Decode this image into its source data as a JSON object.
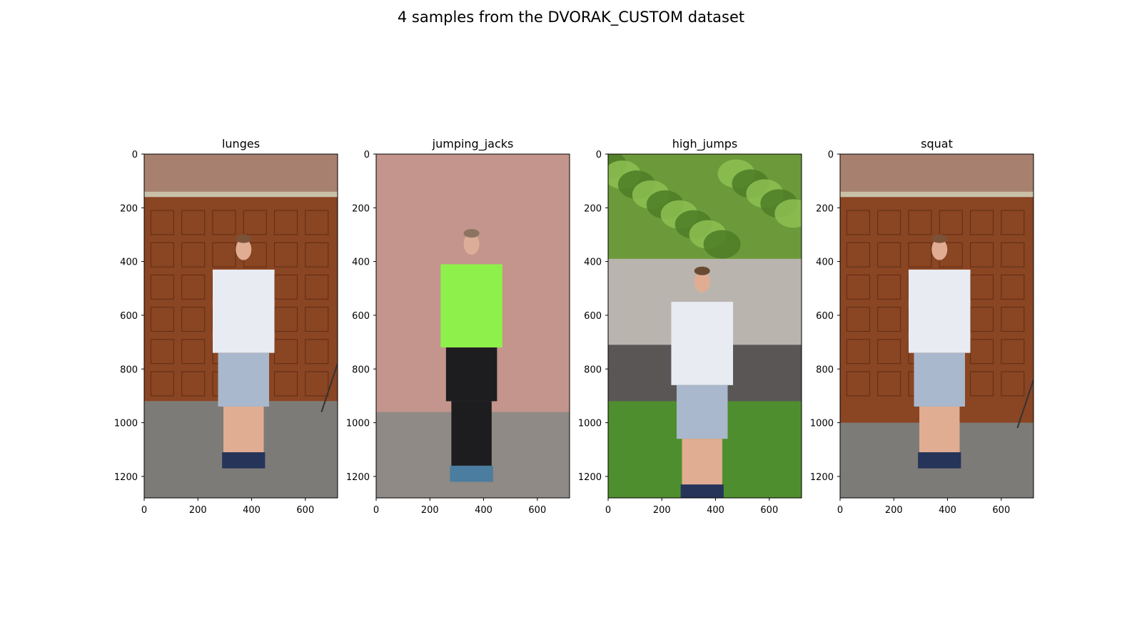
{
  "figure": {
    "title": "4 samples from the DVORAK_CUSTOM dataset"
  },
  "chart_data": [
    {
      "type": "image",
      "title": "lunges",
      "image_size": [
        720,
        1280
      ],
      "xlim": [
        0,
        720
      ],
      "ylim": [
        1280,
        0
      ],
      "xticks": [
        0,
        200,
        400,
        600
      ],
      "yticks": [
        0,
        200,
        400,
        600,
        800,
        1000,
        1200
      ],
      "scene": "man in white t-shirt and grey shorts standing with hands clasped in front of a wooden garage door, paved ground",
      "palette": {
        "door": "#8a4523",
        "ground": "#7d7b77",
        "top": "#a8806f",
        "shirt": "#e8ebf2",
        "pants": "#a9b8cc",
        "skin": "#e0ad93",
        "hair": "#7a5238",
        "shoes": "#26345a"
      }
    },
    {
      "type": "image",
      "title": "jumping_jacks",
      "image_size": [
        720,
        1280
      ],
      "xlim": [
        0,
        720
      ],
      "ylim": [
        1280,
        0
      ],
      "xticks": [
        0,
        200,
        400,
        600
      ],
      "yticks": [
        0,
        200,
        400,
        600,
        800,
        1000,
        1200
      ],
      "scene": "woman in green tank top and black leggings standing in front of a pink stucco wall, brick paving",
      "palette": {
        "wall": "#c3958c",
        "ground": "#8f8a85",
        "shirt": "#8ef04a",
        "pants": "#1d1d1f",
        "skin": "#dcae98",
        "hair": "#8c7460",
        "shoes": "#4a7da0"
      }
    },
    {
      "type": "image",
      "title": "high_jumps",
      "image_size": [
        720,
        1280
      ],
      "xlim": [
        0,
        720
      ],
      "ylim": [
        1280,
        0
      ],
      "xticks": [
        0,
        200,
        400,
        600
      ],
      "yticks": [
        0,
        200,
        400,
        600,
        800,
        1000,
        1200
      ],
      "scene": "man in white t-shirt and grey shorts in a half squat on grass in front of a concrete fence and trees",
      "palette": {
        "trees": "#6c9a3a",
        "fence": "#b9b5ae",
        "soil": "#5a5656",
        "grass": "#4f8e2e",
        "shirt": "#e8ebf2",
        "pants": "#a9b8cc",
        "skin": "#e0ad93",
        "hair": "#6b4a33",
        "shoes": "#26345a"
      }
    },
    {
      "type": "image",
      "title": "squat",
      "image_size": [
        720,
        1280
      ],
      "xlim": [
        0,
        720
      ],
      "ylim": [
        1280,
        0
      ],
      "xticks": [
        0,
        200,
        400,
        600
      ],
      "yticks": [
        0,
        200,
        400,
        600,
        800,
        1000,
        1200
      ],
      "scene": "man in white t-shirt and grey shorts in profile, knees bent, in front of a wooden garage door, paved ground",
      "palette": {
        "door": "#8a4523",
        "ground": "#7d7b77",
        "top": "#a8806f",
        "shirt": "#e8ebf2",
        "pants": "#a9b8cc",
        "skin": "#e0ad93",
        "hair": "#7a5238",
        "shoes": "#26345a"
      }
    }
  ]
}
